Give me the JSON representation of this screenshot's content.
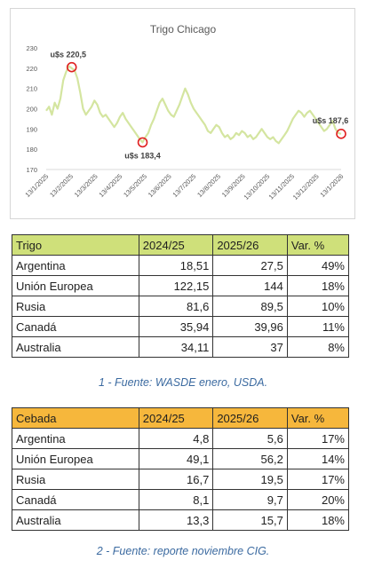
{
  "chart_data": {
    "type": "line",
    "title": "Trigo Chicago",
    "xlabel": "",
    "ylabel": "",
    "ylim": [
      170,
      230
    ],
    "yticks": [
      170,
      180,
      190,
      200,
      210,
      220,
      230
    ],
    "xticks": [
      "13/1/2025",
      "13/2/2025",
      "13/3/2025",
      "13/4/2025",
      "13/5/2025",
      "13/6/2025",
      "13/7/2025",
      "13/8/2025",
      "13/9/2025",
      "13/10/2025",
      "13/11/2025",
      "13/12/2025",
      "13/1/2026"
    ],
    "grid": false,
    "legend": "none",
    "line_color": "#d4e5a0",
    "marker_color": "#e02020",
    "series": [
      {
        "values": [
          199,
          201,
          197,
          203,
          200,
          205,
          214,
          218,
          221,
          220,
          219,
          215,
          208,
          200,
          197,
          199,
          201,
          204,
          202,
          198,
          196,
          197,
          195,
          193,
          191,
          193,
          196,
          198,
          195,
          193,
          191,
          189,
          187,
          185,
          183.4,
          186,
          188,
          192,
          195,
          199,
          203,
          205,
          202,
          199,
          197,
          196,
          199,
          202,
          206,
          210,
          207,
          203,
          200,
          198,
          196,
          194,
          192,
          189,
          188,
          190,
          192,
          191,
          188,
          186,
          187,
          185,
          186,
          188,
          187,
          189,
          188,
          186,
          187,
          185,
          186,
          188,
          190,
          188,
          186,
          185,
          186,
          184,
          183,
          185,
          187,
          189,
          192,
          195,
          197,
          199,
          198,
          196,
          198,
          199,
          197,
          195,
          193,
          191,
          189,
          190,
          192,
          194,
          190,
          188,
          187.6
        ]
      }
    ],
    "annotations": [
      {
        "text": "u$s 220,5",
        "x_index": 9,
        "y": 220.5
      },
      {
        "text": "u$s 183,4",
        "x_index": 34,
        "y": 183.4
      },
      {
        "text": "u$s 187,6",
        "x_index": 104,
        "y": 187.6
      }
    ]
  },
  "trigo_table": {
    "headers": [
      "Trigo",
      "2024/25",
      "2025/26",
      "Var. %"
    ],
    "rows": [
      [
        "Argentina",
        "18,51",
        "27,5",
        "49%"
      ],
      [
        "Unión Europea",
        "122,15",
        "144",
        "18%"
      ],
      [
        "Rusia",
        "81,6",
        "89,5",
        "10%"
      ],
      [
        "Canadá",
        "35,94",
        "39,96",
        "11%"
      ],
      [
        "Australia",
        "34,11",
        "37",
        "8%"
      ]
    ],
    "header_color": "#cfe07a"
  },
  "caption1": "1 - Fuente: WASDE enero, USDA.",
  "cebada_table": {
    "headers": [
      "Cebada",
      "2024/25",
      "2025/26",
      "Var. %"
    ],
    "rows": [
      [
        "Argentina",
        "4,8",
        "5,6",
        "17%"
      ],
      [
        "Unión Europea",
        "49,1",
        "56,2",
        "14%"
      ],
      [
        "Rusia",
        "16,7",
        "19,5",
        "17%"
      ],
      [
        "Canadá",
        "8,1",
        "9,7",
        "20%"
      ],
      [
        "Australia",
        "13,3",
        "15,7",
        "18%"
      ]
    ],
    "header_color": "#f6b73c"
  },
  "caption2": "2 - Fuente: reporte noviembre CIG."
}
